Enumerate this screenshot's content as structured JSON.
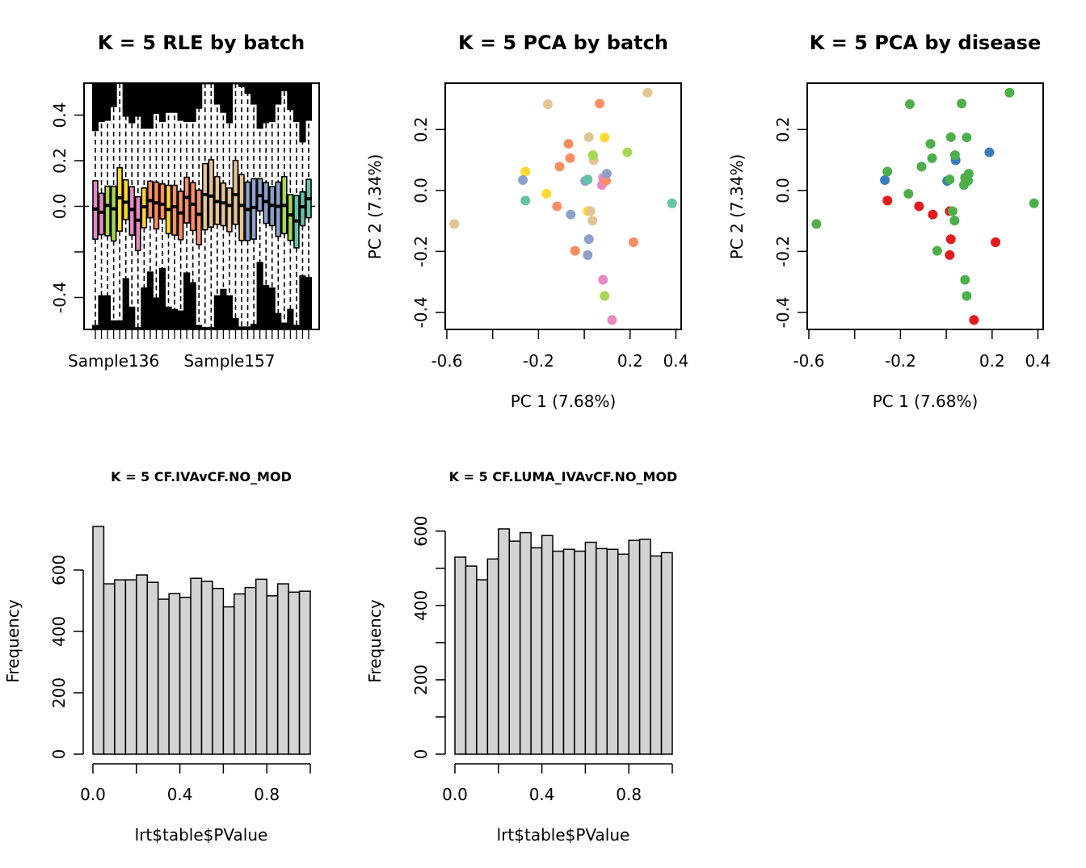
{
  "figure": {
    "panel_count": 5
  },
  "chart_data": [
    {
      "id": "rle",
      "type": "boxplot",
      "title": "K = 5 RLE by batch",
      "xlabel": "",
      "ylabel": "",
      "ylim": [
        -0.54,
        0.54
      ],
      "yticks": [
        -0.4,
        -0.2,
        0.0,
        0.2,
        0.4
      ],
      "ytick_labels": [
        "-0.4",
        "",
        "0.0",
        "0.2",
        "0.4"
      ],
      "xtick_labels_visible": [
        {
          "index": 3,
          "label": "Sample136"
        },
        {
          "index": 22,
          "label": "Sample157"
        }
      ],
      "reference_line": 0.0,
      "batch_colors": {
        "pink": "#E78AC3",
        "green": "#A6D854",
        "yellow": "#FFD92F",
        "orange": "#FC8D62",
        "tan": "#E5C494",
        "blue": "#8DA0CB",
        "teal": "#66C2A5"
      },
      "boxes": [
        {
          "batch": "pink",
          "q1": -0.144,
          "median": -0.012,
          "q3": 0.112,
          "upper_whisker_outliers_from": 0.33,
          "lower_whisker_outliers_from": -0.52
        },
        {
          "batch": "pink",
          "q1": -0.124,
          "median": -0.026,
          "q3": 0.057,
          "upper_whisker_outliers_from": 0.37,
          "lower_whisker_outliers_from": -0.39
        },
        {
          "batch": "green",
          "q1": -0.129,
          "median": 0.004,
          "q3": 0.088,
          "upper_whisker_outliers_from": 0.375,
          "lower_whisker_outliers_from": -0.39
        },
        {
          "batch": "green",
          "q1": -0.152,
          "median": -0.011,
          "q3": 0.088,
          "upper_whisker_outliers_from": 0.435,
          "lower_whisker_outliers_from": -0.5
        },
        {
          "batch": "yellow",
          "q1": -0.109,
          "median": 0.037,
          "q3": 0.169,
          "upper_whisker_outliers_from": 0.54,
          "lower_whisker_outliers_from": -0.5
        },
        {
          "batch": "yellow",
          "q1": -0.058,
          "median": 0.018,
          "q3": 0.116,
          "upper_whisker_outliers_from": 0.393,
          "lower_whisker_outliers_from": -0.315
        },
        {
          "batch": "pink",
          "q1": -0.126,
          "median": -0.014,
          "q3": 0.086,
          "upper_whisker_outliers_from": 0.364,
          "lower_whisker_outliers_from": -0.44
        },
        {
          "batch": "pink",
          "q1": -0.194,
          "median": -0.061,
          "q3": 0.042,
          "upper_whisker_outliers_from": 0.393,
          "lower_whisker_outliers_from": -0.53
        },
        {
          "batch": "yellow",
          "q1": -0.094,
          "median": -0.002,
          "q3": 0.08,
          "upper_whisker_outliers_from": 0.34,
          "lower_whisker_outliers_from": -0.356
        },
        {
          "batch": "orange",
          "q1": -0.05,
          "median": 0.025,
          "q3": 0.11,
          "upper_whisker_outliers_from": 0.34,
          "lower_whisker_outliers_from": -0.286
        },
        {
          "batch": "orange",
          "q1": -0.099,
          "median": 0.015,
          "q3": 0.106,
          "upper_whisker_outliers_from": 0.405,
          "lower_whisker_outliers_from": -0.4
        },
        {
          "batch": "orange",
          "q1": -0.055,
          "median": 0.009,
          "q3": 0.098,
          "upper_whisker_outliers_from": 0.37,
          "lower_whisker_outliers_from": -0.27
        },
        {
          "batch": "yellow",
          "q1": -0.12,
          "median": -0.014,
          "q3": 0.092,
          "upper_whisker_outliers_from": 0.41,
          "lower_whisker_outliers_from": -0.44
        },
        {
          "batch": "orange",
          "q1": -0.126,
          "median": -0.002,
          "q3": 0.092,
          "upper_whisker_outliers_from": 0.41,
          "lower_whisker_outliers_from": -0.45
        },
        {
          "batch": "orange",
          "q1": -0.146,
          "median": -0.029,
          "q3": 0.066,
          "upper_whisker_outliers_from": 0.375,
          "lower_whisker_outliers_from": -0.457
        },
        {
          "batch": "orange",
          "q1": -0.073,
          "median": 0.039,
          "q3": 0.127,
          "upper_whisker_outliers_from": 0.37,
          "lower_whisker_outliers_from": -0.29
        },
        {
          "batch": "orange",
          "q1": -0.106,
          "median": 0.009,
          "q3": 0.104,
          "upper_whisker_outliers_from": 0.37,
          "lower_whisker_outliers_from": -0.333
        },
        {
          "batch": "orange",
          "q1": -0.168,
          "median": -0.035,
          "q3": 0.071,
          "upper_whisker_outliers_from": 0.428,
          "lower_whisker_outliers_from": -0.52
        },
        {
          "batch": "tan",
          "q1": -0.103,
          "median": 0.051,
          "q3": 0.187,
          "upper_whisker_outliers_from": 0.535,
          "lower_whisker_outliers_from": -0.53
        },
        {
          "batch": "tan",
          "q1": -0.091,
          "median": 0.045,
          "q3": 0.204,
          "upper_whisker_outliers_from": 0.535,
          "lower_whisker_outliers_from": -0.53
        },
        {
          "batch": "tan",
          "q1": -0.079,
          "median": 0.021,
          "q3": 0.13,
          "upper_whisker_outliers_from": 0.446,
          "lower_whisker_outliers_from": -0.39
        },
        {
          "batch": "tan",
          "q1": -0.085,
          "median": 0.015,
          "q3": 0.102,
          "upper_whisker_outliers_from": 0.41,
          "lower_whisker_outliers_from": -0.362
        },
        {
          "batch": "tan",
          "q1": -0.111,
          "median": 0.004,
          "q3": 0.08,
          "upper_whisker_outliers_from": 0.364,
          "lower_whisker_outliers_from": -0.39
        },
        {
          "batch": "tan",
          "q1": -0.079,
          "median": 0.051,
          "q3": 0.201,
          "upper_whisker_outliers_from": 0.535,
          "lower_whisker_outliers_from": -0.49
        },
        {
          "batch": "tan",
          "q1": -0.15,
          "median": 0.004,
          "q3": 0.139,
          "upper_whisker_outliers_from": 0.523,
          "lower_whisker_outliers_from": -0.527
        },
        {
          "batch": "blue",
          "q1": -0.15,
          "median": -0.014,
          "q3": 0.106,
          "upper_whisker_outliers_from": 0.493,
          "lower_whisker_outliers_from": -0.527
        },
        {
          "batch": "blue",
          "q1": -0.144,
          "median": -0.005,
          "q3": 0.121,
          "upper_whisker_outliers_from": 0.446,
          "lower_whisker_outliers_from": -0.515
        },
        {
          "batch": "blue",
          "q1": -0.02,
          "median": 0.047,
          "q3": 0.121,
          "upper_whisker_outliers_from": 0.34,
          "lower_whisker_outliers_from": -0.244
        },
        {
          "batch": "blue",
          "q1": -0.075,
          "median": 0.021,
          "q3": 0.104,
          "upper_whisker_outliers_from": 0.364,
          "lower_whisker_outliers_from": -0.345
        },
        {
          "batch": "blue",
          "q1": -0.085,
          "median": 0.004,
          "q3": 0.086,
          "upper_whisker_outliers_from": 0.37,
          "lower_whisker_outliers_from": -0.356
        },
        {
          "batch": "blue",
          "q1": -0.132,
          "median": 0.0,
          "q3": 0.106,
          "upper_whisker_outliers_from": 0.446,
          "lower_whisker_outliers_from": -0.468
        },
        {
          "batch": "green",
          "q1": -0.12,
          "median": 0.004,
          "q3": 0.13,
          "upper_whisker_outliers_from": 0.505,
          "lower_whisker_outliers_from": -0.51
        },
        {
          "batch": "green",
          "q1": -0.15,
          "median": -0.038,
          "q3": 0.051,
          "upper_whisker_outliers_from": 0.422,
          "lower_whisker_outliers_from": -0.45
        },
        {
          "batch": "teal",
          "q1": -0.182,
          "median": -0.064,
          "q3": 0.047,
          "upper_whisker_outliers_from": 0.37,
          "lower_whisker_outliers_from": -0.52
        },
        {
          "batch": "teal",
          "q1": -0.085,
          "median": -0.002,
          "q3": 0.063,
          "upper_whisker_outliers_from": 0.28,
          "lower_whisker_outliers_from": -0.303
        },
        {
          "batch": "teal",
          "q1": -0.05,
          "median": 0.033,
          "q3": 0.118,
          "upper_whisker_outliers_from": 0.375,
          "lower_whisker_outliers_from": -0.31
        }
      ]
    },
    {
      "id": "pca-batch",
      "type": "scatter",
      "title": "K = 5 PCA by batch",
      "xlabel": "PC 1 (7.68%)",
      "ylabel": "PC 2 (7.34%)",
      "xlim": [
        -0.607,
        0.423
      ],
      "ylim": [
        -0.456,
        0.352
      ],
      "xticks": [
        -0.6,
        -0.4,
        -0.2,
        0.0,
        0.2,
        0.4
      ],
      "xtick_labels": [
        "-0.6",
        "",
        "-0.2",
        "",
        "0.2",
        "0.4"
      ],
      "yticks": [
        -0.4,
        -0.2,
        0.0,
        0.2
      ],
      "ytick_labels": [
        "-0.4",
        "-0.2",
        "0.0",
        "0.2"
      ],
      "group_colors": {
        "pink": "#E78AC3",
        "green": "#A6D854",
        "yellow": "#FFD92F",
        "orange": "#FC8D62",
        "tan": "#E5C494",
        "blue": "#8DA0CB",
        "teal": "#66C2A5"
      },
      "points": [
        {
          "x": 0.276,
          "y": 0.321,
          "group": "tan"
        },
        {
          "x": -0.159,
          "y": 0.283,
          "group": "tan"
        },
        {
          "x": 0.067,
          "y": 0.285,
          "group": "orange"
        },
        {
          "x": 0.02,
          "y": 0.175,
          "group": "tan"
        },
        {
          "x": 0.089,
          "y": 0.174,
          "group": "yellow"
        },
        {
          "x": -0.069,
          "y": 0.153,
          "group": "orange"
        },
        {
          "x": 0.188,
          "y": 0.125,
          "group": "green"
        },
        {
          "x": 0.041,
          "y": 0.099,
          "group": "tan"
        },
        {
          "x": 0.038,
          "y": 0.116,
          "group": "green"
        },
        {
          "x": -0.062,
          "y": 0.106,
          "group": "orange"
        },
        {
          "x": -0.108,
          "y": 0.078,
          "group": "orange"
        },
        {
          "x": -0.257,
          "y": 0.062,
          "group": "yellow"
        },
        {
          "x": -0.268,
          "y": 0.034,
          "group": "blue"
        },
        {
          "x": 0.077,
          "y": 0.018,
          "group": "pink"
        },
        {
          "x": 0.082,
          "y": 0.042,
          "group": "pink"
        },
        {
          "x": 0.095,
          "y": 0.032,
          "group": "orange"
        },
        {
          "x": 0.098,
          "y": 0.055,
          "group": "blue"
        },
        {
          "x": 0.004,
          "y": 0.031,
          "group": "blue"
        },
        {
          "x": 0.015,
          "y": 0.036,
          "group": "teal"
        },
        {
          "x": -0.165,
          "y": -0.011,
          "group": "yellow"
        },
        {
          "x": -0.257,
          "y": -0.033,
          "group": "teal"
        },
        {
          "x": 0.383,
          "y": -0.042,
          "group": "teal"
        },
        {
          "x": -0.119,
          "y": -0.052,
          "group": "orange"
        },
        {
          "x": -0.059,
          "y": -0.079,
          "group": "blue"
        },
        {
          "x": 0.015,
          "y": -0.068,
          "group": "yellow"
        },
        {
          "x": 0.027,
          "y": -0.068,
          "group": "tan"
        },
        {
          "x": 0.036,
          "y": -0.099,
          "group": "tan"
        },
        {
          "x": -0.567,
          "y": -0.11,
          "group": "tan"
        },
        {
          "x": 0.02,
          "y": -0.16,
          "group": "blue"
        },
        {
          "x": 0.215,
          "y": -0.17,
          "group": "orange"
        },
        {
          "x": -0.04,
          "y": -0.198,
          "group": "orange"
        },
        {
          "x": 0.015,
          "y": -0.212,
          "group": "blue"
        },
        {
          "x": 0.082,
          "y": -0.293,
          "group": "pink"
        },
        {
          "x": 0.089,
          "y": -0.346,
          "group": "green"
        },
        {
          "x": 0.121,
          "y": -0.425,
          "group": "pink"
        }
      ]
    },
    {
      "id": "pca-disease",
      "type": "scatter",
      "title": "K = 5 PCA by disease",
      "xlabel": "PC 1 (7.68%)",
      "ylabel": "PC 2 (7.34%)",
      "xlim": [
        -0.607,
        0.423
      ],
      "ylim": [
        -0.456,
        0.352
      ],
      "xticks": [
        -0.6,
        -0.4,
        -0.2,
        0.0,
        0.2,
        0.4
      ],
      "xtick_labels": [
        "-0.6",
        "",
        "-0.2",
        "",
        "0.2",
        "0.4"
      ],
      "yticks": [
        -0.4,
        -0.2,
        0.0,
        0.2
      ],
      "ytick_labels": [
        "-0.4",
        "-0.2",
        "0.0",
        "0.2"
      ],
      "group_colors": {
        "red": "#E41A1C",
        "blue": "#377EB8",
        "green": "#4DAF4A"
      },
      "points": [
        {
          "x": 0.276,
          "y": 0.321,
          "group": "green"
        },
        {
          "x": -0.159,
          "y": 0.283,
          "group": "green"
        },
        {
          "x": 0.067,
          "y": 0.285,
          "group": "green"
        },
        {
          "x": 0.02,
          "y": 0.175,
          "group": "green"
        },
        {
          "x": 0.089,
          "y": 0.174,
          "group": "green"
        },
        {
          "x": -0.069,
          "y": 0.153,
          "group": "green"
        },
        {
          "x": 0.188,
          "y": 0.125,
          "group": "blue"
        },
        {
          "x": 0.041,
          "y": 0.099,
          "group": "blue"
        },
        {
          "x": 0.038,
          "y": 0.116,
          "group": "green"
        },
        {
          "x": -0.062,
          "y": 0.106,
          "group": "green"
        },
        {
          "x": -0.108,
          "y": 0.078,
          "group": "green"
        },
        {
          "x": -0.268,
          "y": 0.034,
          "group": "blue"
        },
        {
          "x": -0.257,
          "y": 0.062,
          "group": "green"
        },
        {
          "x": 0.004,
          "y": 0.031,
          "group": "blue"
        },
        {
          "x": 0.015,
          "y": 0.036,
          "group": "green"
        },
        {
          "x": 0.077,
          "y": 0.018,
          "group": "green"
        },
        {
          "x": 0.082,
          "y": 0.042,
          "group": "green"
        },
        {
          "x": 0.095,
          "y": 0.032,
          "group": "green"
        },
        {
          "x": 0.098,
          "y": 0.055,
          "group": "green"
        },
        {
          "x": -0.165,
          "y": -0.011,
          "group": "green"
        },
        {
          "x": -0.257,
          "y": -0.033,
          "group": "red"
        },
        {
          "x": 0.383,
          "y": -0.042,
          "group": "green"
        },
        {
          "x": -0.119,
          "y": -0.052,
          "group": "red"
        },
        {
          "x": -0.059,
          "y": -0.079,
          "group": "red"
        },
        {
          "x": 0.015,
          "y": -0.068,
          "group": "red"
        },
        {
          "x": 0.027,
          "y": -0.068,
          "group": "green"
        },
        {
          "x": 0.036,
          "y": -0.099,
          "group": "green"
        },
        {
          "x": -0.567,
          "y": -0.11,
          "group": "green"
        },
        {
          "x": 0.02,
          "y": -0.16,
          "group": "red"
        },
        {
          "x": 0.215,
          "y": -0.17,
          "group": "red"
        },
        {
          "x": -0.04,
          "y": -0.198,
          "group": "green"
        },
        {
          "x": 0.015,
          "y": -0.212,
          "group": "red"
        },
        {
          "x": 0.082,
          "y": -0.293,
          "group": "green"
        },
        {
          "x": 0.089,
          "y": -0.346,
          "group": "green"
        },
        {
          "x": 0.121,
          "y": -0.425,
          "group": "red"
        }
      ]
    },
    {
      "id": "hist-iva",
      "type": "histogram",
      "title": "K = 5 CF.IVAvCF.NO_MOD",
      "xlabel": "lrt$table$PValue",
      "ylabel": "Frequency",
      "bin_width": 0.05,
      "xlim": [
        0,
        1
      ],
      "xticks": [
        0.0,
        0.2,
        0.4,
        0.6,
        0.8,
        1.0
      ],
      "xtick_labels": [
        "0.0",
        "",
        "0.4",
        "",
        "0.8",
        ""
      ],
      "yticks": [
        0,
        200,
        400,
        600
      ],
      "ytick_labels": [
        "0",
        "200",
        "400",
        "600"
      ],
      "ylim_max": 742,
      "bar_fill": "#D3D3D3",
      "values": [
        742,
        555,
        568,
        568,
        584,
        560,
        505,
        523,
        511,
        573,
        563,
        540,
        480,
        522,
        543,
        570,
        516,
        555,
        528,
        531
      ]
    },
    {
      "id": "hist-luma-iva",
      "type": "histogram",
      "title": "K = 5 CF.LUMA_IVAvCF.NO_MOD",
      "xlabel": "lrt$table$PValue",
      "ylabel": "Frequency",
      "bin_width": 0.05,
      "xlim": [
        0,
        1
      ],
      "xticks": [
        0.0,
        0.2,
        0.4,
        0.6,
        0.8,
        1.0
      ],
      "xtick_labels": [
        "0.0",
        "",
        "0.4",
        "",
        "0.8",
        ""
      ],
      "yticks": [
        0,
        100,
        200,
        300,
        400,
        500,
        600
      ],
      "ytick_labels": [
        "0",
        "",
        "200",
        "",
        "400",
        "",
        "600"
      ],
      "ylim_max": 606,
      "bar_fill": "#D3D3D3",
      "values": [
        530,
        506,
        469,
        525,
        606,
        573,
        596,
        555,
        588,
        546,
        551,
        546,
        570,
        553,
        551,
        538,
        575,
        578,
        533,
        542
      ]
    }
  ]
}
